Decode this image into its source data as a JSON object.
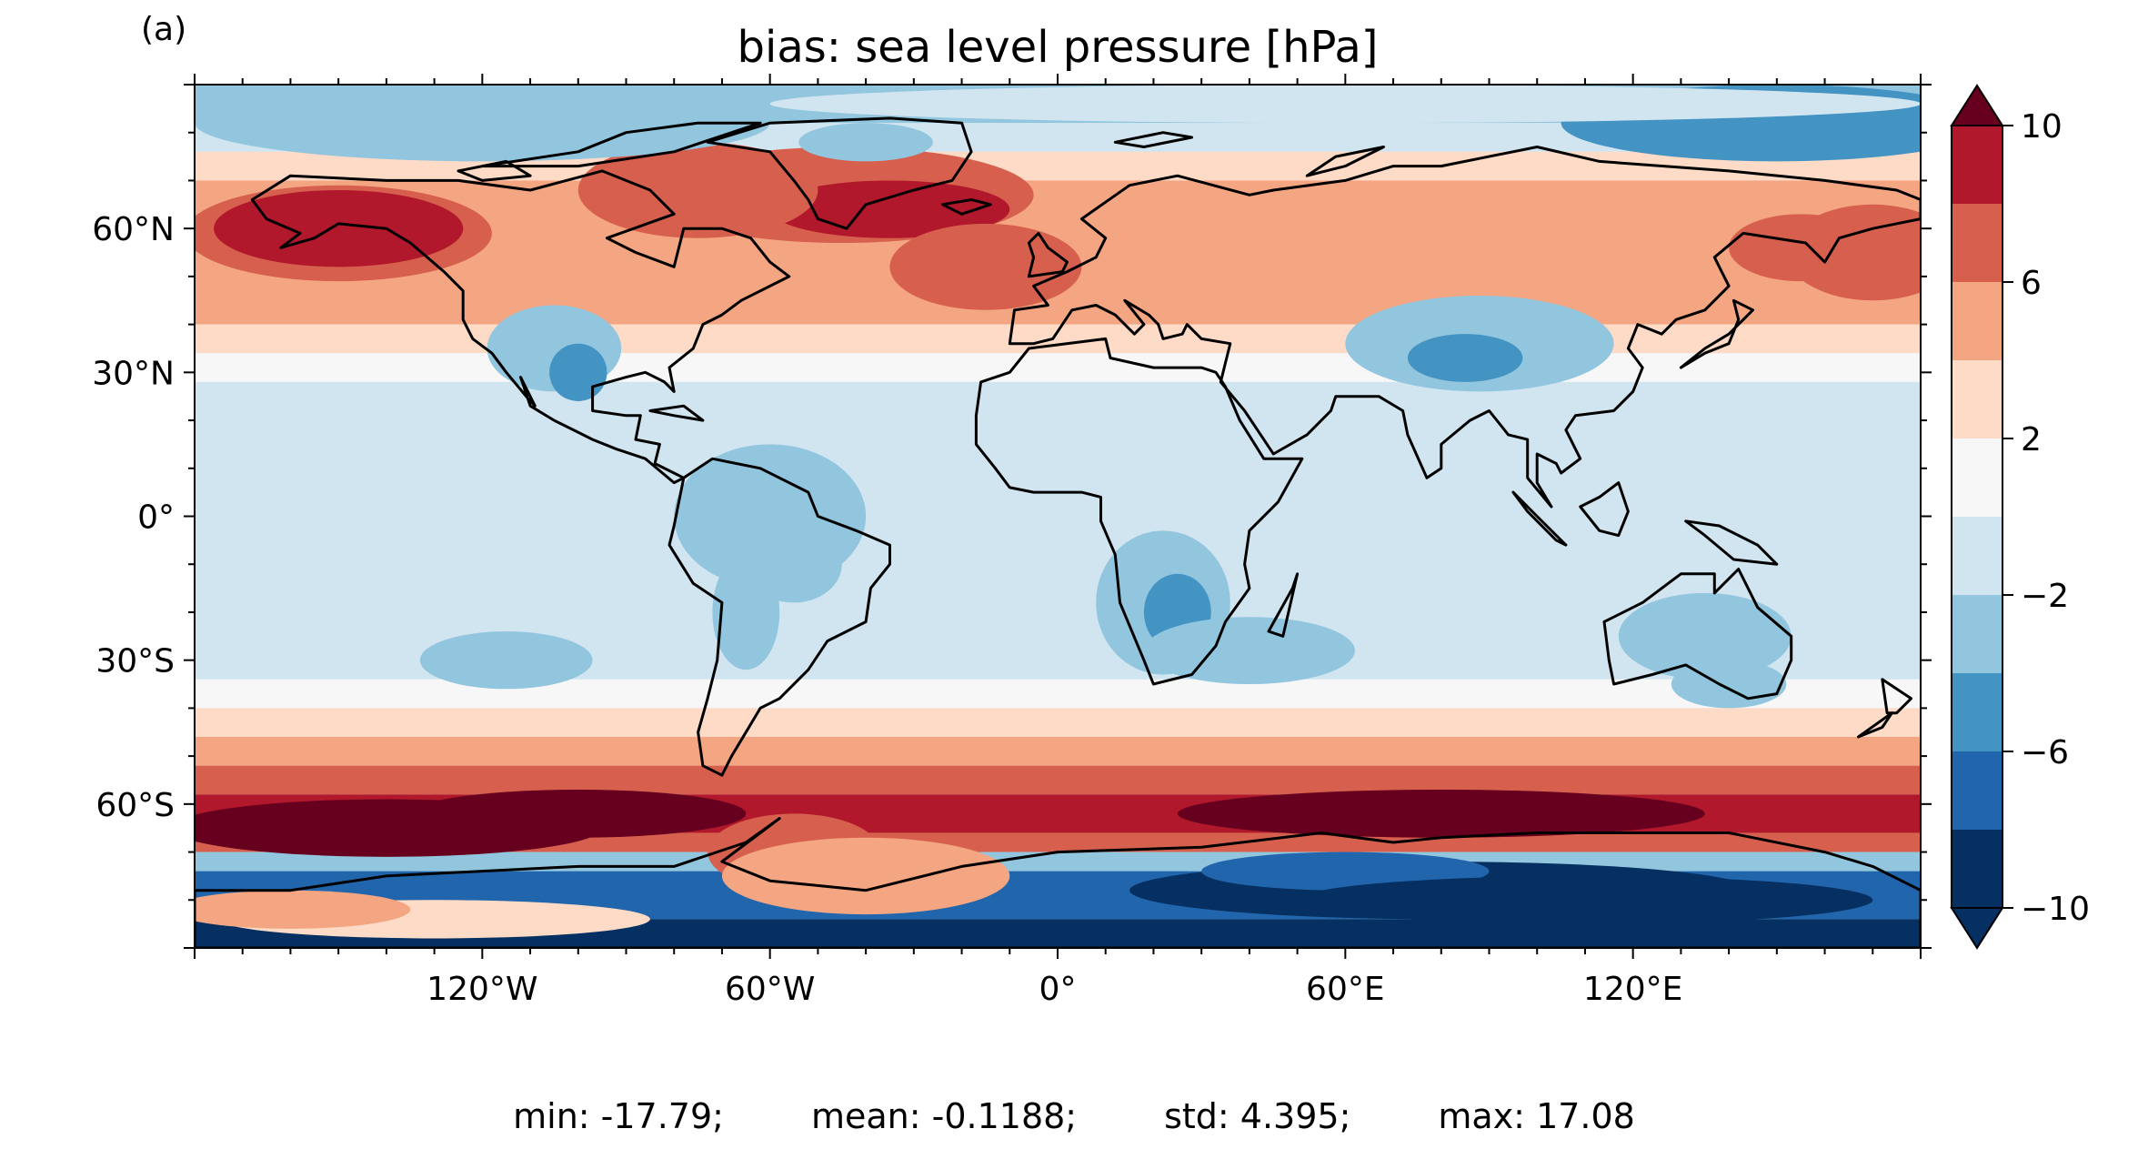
{
  "panel_label": "(a)",
  "title": "bias: sea level pressure [hPa]",
  "stats": {
    "min": "min: -17.79;",
    "mean": "mean: -0.1188;",
    "std": "std: 4.395;",
    "max": "max: 17.08"
  },
  "map": {
    "projection": "PlateCarree",
    "lon_range": [
      -180,
      180
    ],
    "lat_range": [
      -90,
      90
    ],
    "x_ticks": [
      {
        "value": -120,
        "label": "120°W"
      },
      {
        "value": -60,
        "label": "60°W"
      },
      {
        "value": 0,
        "label": "0°"
      },
      {
        "value": 60,
        "label": "60°E"
      },
      {
        "value": 120,
        "label": "120°E"
      }
    ],
    "y_ticks": [
      {
        "value": 60,
        "label": "60°N"
      },
      {
        "value": 30,
        "label": "30°N"
      },
      {
        "value": 0,
        "label": "0°"
      },
      {
        "value": -30,
        "label": "30°S"
      },
      {
        "value": -60,
        "label": "60°S"
      }
    ],
    "coastlines": true
  },
  "colorbar": {
    "colormap": "RdBu_r",
    "extend": "both",
    "levels": [
      -10,
      -8,
      -6,
      -4,
      -2,
      0,
      2,
      4,
      6,
      8,
      10
    ],
    "ticks": [
      {
        "value": 10,
        "label": "10"
      },
      {
        "value": 6,
        "label": "6"
      },
      {
        "value": 2,
        "label": "2"
      },
      {
        "value": -2,
        "label": "−2"
      },
      {
        "value": -6,
        "label": "−6"
      },
      {
        "value": -10,
        "label": "−10"
      }
    ],
    "colors": [
      "#053061",
      "#2166ac",
      "#4393c3",
      "#92c5de",
      "#d1e5f0",
      "#f7f7f7",
      "#fddbc7",
      "#f4a582",
      "#d6604d",
      "#b2182b",
      "#67001f"
    ]
  }
}
